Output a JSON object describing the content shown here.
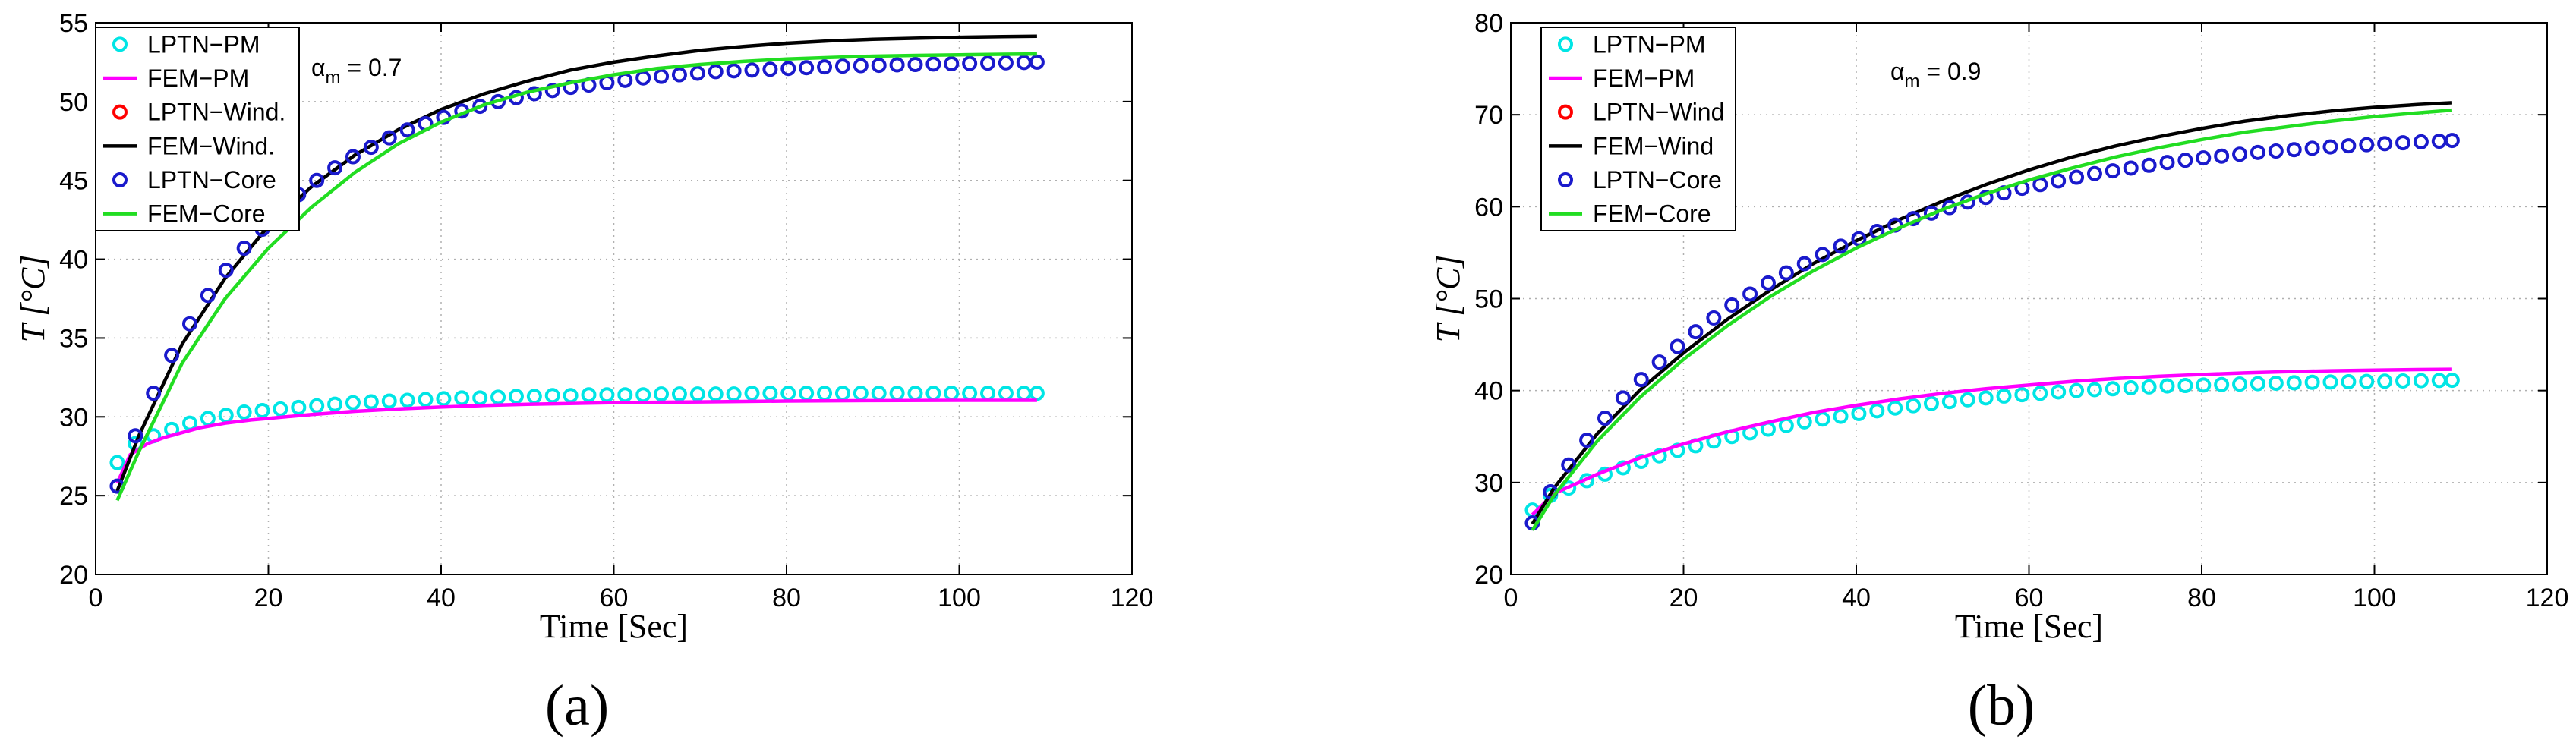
{
  "chart_data": [
    {
      "type": "line",
      "panel_label": "(a)",
      "annotation": {
        "main": "α",
        "sub": "m",
        "value": " = 0.7"
      },
      "xlabel": "Time [Sec]",
      "ylabel": "T [°C]",
      "xlim": [
        0,
        120
      ],
      "ylim": [
        20,
        55
      ],
      "xticks": [
        0,
        20,
        40,
        60,
        80,
        100,
        120
      ],
      "yticks": [
        20,
        25,
        30,
        35,
        40,
        45,
        50,
        55
      ],
      "grid": true,
      "legend_position": "top-left",
      "series": [
        {
          "name": "LPTN−PM",
          "style": "markers",
          "color": "#00e5e5",
          "x": [
            2.5,
            4.6,
            6.7,
            8.8,
            10.9,
            13,
            15.1,
            17.2,
            19.3,
            21.4,
            23.5,
            25.6,
            27.7,
            29.8,
            31.9,
            34,
            36.1,
            38.2,
            40.3,
            42.4,
            44.5,
            46.6,
            48.7,
            50.8,
            52.9,
            55,
            57.1,
            59.2,
            61.3,
            63.4,
            65.5,
            67.6,
            69.7,
            71.8,
            73.9,
            76,
            78.1,
            80.2,
            82.3,
            84.4,
            86.5,
            88.6,
            90.7,
            92.8,
            94.9,
            97,
            99.1,
            101.2,
            103.3,
            105.4,
            107.5,
            109
          ],
          "y": [
            27.1,
            28.3,
            28.8,
            29.2,
            29.6,
            29.9,
            30.1,
            30.3,
            30.4,
            30.5,
            30.6,
            30.7,
            30.8,
            30.9,
            30.95,
            31,
            31.05,
            31.1,
            31.15,
            31.2,
            31.2,
            31.25,
            31.3,
            31.3,
            31.35,
            31.35,
            31.4,
            31.4,
            31.4,
            31.4,
            31.45,
            31.45,
            31.45,
            31.45,
            31.45,
            31.5,
            31.5,
            31.5,
            31.5,
            31.5,
            31.5,
            31.5,
            31.5,
            31.5,
            31.5,
            31.5,
            31.5,
            31.5,
            31.5,
            31.5,
            31.5,
            31.5
          ]
        },
        {
          "name": "FEM−PM",
          "style": "line",
          "color": "#ff00ff",
          "x": [
            2.5,
            4,
            6,
            8,
            10,
            12,
            15,
            18,
            20,
            25,
            30,
            35,
            40,
            45,
            50,
            60,
            70,
            80,
            90,
            100,
            109
          ],
          "y": [
            25.8,
            27.6,
            28.3,
            28.7,
            29.0,
            29.3,
            29.6,
            29.8,
            29.9,
            30.15,
            30.35,
            30.5,
            30.62,
            30.72,
            30.8,
            30.9,
            30.95,
            31.0,
            31.03,
            31.05,
            31.05
          ]
        },
        {
          "name": "LPTN−Wind.",
          "style": "markers",
          "color": "#ff0000",
          "x": [],
          "y": []
        },
        {
          "name": "FEM−Wind.",
          "style": "line",
          "color": "#000000",
          "x": [
            2.5,
            5,
            10,
            15,
            20,
            25,
            30,
            35,
            40,
            45,
            50,
            55,
            60,
            65,
            70,
            75,
            80,
            85,
            90,
            95,
            100,
            105,
            109
          ],
          "y": [
            25.3,
            28.8,
            34.6,
            38.8,
            42.1,
            44.6,
            46.6,
            48.2,
            49.5,
            50.5,
            51.3,
            52.0,
            52.5,
            52.9,
            53.25,
            53.5,
            53.7,
            53.85,
            53.95,
            54.02,
            54.08,
            54.12,
            54.15
          ]
        },
        {
          "name": "LPTN−Core",
          "style": "markers",
          "color": "#1a1acc",
          "x": [
            2.5,
            4.6,
            6.7,
            8.8,
            10.9,
            13,
            15.1,
            17.2,
            19.3,
            21.4,
            23.5,
            25.6,
            27.7,
            29.8,
            31.9,
            34,
            36.1,
            38.2,
            40.3,
            42.4,
            44.5,
            46.6,
            48.7,
            50.8,
            52.9,
            55,
            57.1,
            59.2,
            61.3,
            63.4,
            65.5,
            67.6,
            69.7,
            71.8,
            73.9,
            76,
            78.1,
            80.2,
            82.3,
            84.4,
            86.5,
            88.6,
            90.7,
            92.8,
            94.9,
            97,
            99.1,
            101.2,
            103.3,
            105.4,
            107.5,
            109
          ],
          "y": [
            25.6,
            28.8,
            31.5,
            33.9,
            35.9,
            37.7,
            39.3,
            40.7,
            41.9,
            43.1,
            44.1,
            45.0,
            45.8,
            46.5,
            47.1,
            47.7,
            48.2,
            48.6,
            49.0,
            49.4,
            49.7,
            50.0,
            50.25,
            50.5,
            50.7,
            50.9,
            51.05,
            51.2,
            51.35,
            51.5,
            51.6,
            51.7,
            51.8,
            51.9,
            51.95,
            52.0,
            52.05,
            52.1,
            52.15,
            52.2,
            52.25,
            52.28,
            52.3,
            52.33,
            52.35,
            52.38,
            52.4,
            52.42,
            52.44,
            52.46,
            52.48,
            52.5
          ]
        },
        {
          "name": "FEM−Core",
          "style": "line",
          "color": "#22dd22",
          "x": [
            2.5,
            5,
            10,
            15,
            20,
            25,
            30,
            35,
            40,
            45,
            50,
            55,
            60,
            65,
            70,
            75,
            80,
            85,
            90,
            95,
            100,
            105,
            109
          ],
          "y": [
            24.7,
            27.8,
            33.4,
            37.5,
            40.7,
            43.3,
            45.5,
            47.3,
            48.7,
            49.8,
            50.6,
            51.2,
            51.7,
            52.1,
            52.35,
            52.55,
            52.7,
            52.8,
            52.88,
            52.93,
            52.97,
            53.0,
            53.02
          ]
        }
      ]
    },
    {
      "type": "line",
      "panel_label": "(b)",
      "annotation": {
        "main": "α",
        "sub": "m",
        "value": " = 0.9"
      },
      "xlabel": "Time [Sec]",
      "ylabel": "T [°C]",
      "xlim": [
        0,
        120
      ],
      "ylim": [
        20,
        80
      ],
      "xticks": [
        0,
        20,
        40,
        60,
        80,
        100,
        120
      ],
      "yticks": [
        20,
        30,
        40,
        50,
        60,
        70,
        80
      ],
      "grid": true,
      "legend_position": "top-left",
      "series": [
        {
          "name": "LPTN−PM",
          "style": "markers",
          "color": "#00e5e5",
          "x": [
            2.5,
            4.6,
            6.7,
            8.8,
            10.9,
            13,
            15.1,
            17.2,
            19.3,
            21.4,
            23.5,
            25.6,
            27.7,
            29.8,
            31.9,
            34,
            36.1,
            38.2,
            40.3,
            42.4,
            44.5,
            46.6,
            48.7,
            50.8,
            52.9,
            55,
            57.1,
            59.2,
            61.3,
            63.4,
            65.5,
            67.6,
            69.7,
            71.8,
            73.9,
            76,
            78.1,
            80.2,
            82.3,
            84.4,
            86.5,
            88.6,
            90.7,
            92.8,
            94.9,
            97,
            99.1,
            101.2,
            103.3,
            105.4,
            107.5,
            109
          ],
          "y": [
            27.0,
            28.6,
            29.4,
            30.2,
            30.9,
            31.6,
            32.3,
            32.9,
            33.5,
            34.0,
            34.5,
            35.0,
            35.4,
            35.8,
            36.2,
            36.6,
            36.9,
            37.2,
            37.5,
            37.8,
            38.1,
            38.35,
            38.6,
            38.8,
            39.0,
            39.2,
            39.4,
            39.55,
            39.7,
            39.85,
            40.0,
            40.1,
            40.2,
            40.3,
            40.4,
            40.5,
            40.55,
            40.6,
            40.65,
            40.7,
            40.75,
            40.8,
            40.85,
            40.9,
            40.93,
            40.96,
            40.99,
            41.02,
            41.05,
            41.08,
            41.1,
            41.12
          ]
        },
        {
          "name": "FEM−PM",
          "style": "line",
          "color": "#ff00ff",
          "x": [
            2.5,
            5,
            10,
            15,
            20,
            25,
            30,
            35,
            40,
            45,
            50,
            55,
            60,
            65,
            70,
            75,
            80,
            85,
            90,
            95,
            100,
            105,
            109
          ],
          "y": [
            26.5,
            28.8,
            30.9,
            32.7,
            34.2,
            35.5,
            36.6,
            37.6,
            38.4,
            39.1,
            39.7,
            40.2,
            40.6,
            41.0,
            41.3,
            41.55,
            41.75,
            41.92,
            42.05,
            42.15,
            42.22,
            42.28,
            42.32
          ]
        },
        {
          "name": "LPTN−Wind",
          "style": "markers",
          "color": "#ff0000",
          "x": [],
          "y": []
        },
        {
          "name": "FEM−Wind",
          "style": "line",
          "color": "#000000",
          "x": [
            2.5,
            5,
            10,
            15,
            20,
            25,
            30,
            35,
            40,
            45,
            50,
            55,
            60,
            65,
            70,
            75,
            80,
            85,
            90,
            95,
            100,
            105,
            109
          ],
          "y": [
            25.5,
            29.4,
            35.3,
            40.1,
            44.1,
            47.7,
            50.9,
            53.8,
            56.3,
            58.6,
            60.6,
            62.4,
            64.0,
            65.4,
            66.6,
            67.6,
            68.5,
            69.3,
            69.9,
            70.4,
            70.8,
            71.1,
            71.3
          ]
        },
        {
          "name": "LPTN−Core",
          "style": "markers",
          "color": "#1a1acc",
          "x": [
            2.5,
            4.6,
            6.7,
            8.8,
            10.9,
            13,
            15.1,
            17.2,
            19.3,
            21.4,
            23.5,
            25.6,
            27.7,
            29.8,
            31.9,
            34,
            36.1,
            38.2,
            40.3,
            42.4,
            44.5,
            46.6,
            48.7,
            50.8,
            52.9,
            55,
            57.1,
            59.2,
            61.3,
            63.4,
            65.5,
            67.6,
            69.7,
            71.8,
            73.9,
            76,
            78.1,
            80.2,
            82.3,
            84.4,
            86.5,
            88.6,
            90.7,
            92.8,
            94.9,
            97,
            99.1,
            101.2,
            103.3,
            105.4,
            107.5,
            109
          ],
          "y": [
            25.6,
            29.0,
            31.9,
            34.6,
            37.0,
            39.2,
            41.2,
            43.1,
            44.8,
            46.4,
            47.9,
            49.3,
            50.5,
            51.7,
            52.8,
            53.8,
            54.8,
            55.7,
            56.5,
            57.3,
            58.0,
            58.7,
            59.3,
            59.9,
            60.5,
            61.0,
            61.5,
            62.0,
            62.4,
            62.8,
            63.2,
            63.6,
            63.9,
            64.2,
            64.5,
            64.8,
            65.05,
            65.3,
            65.5,
            65.7,
            65.9,
            66.05,
            66.2,
            66.35,
            66.5,
            66.62,
            66.74,
            66.85,
            66.95,
            67.05,
            67.12,
            67.2
          ]
        },
        {
          "name": "FEM−Core",
          "style": "line",
          "color": "#22dd22",
          "x": [
            2.5,
            5,
            10,
            15,
            20,
            25,
            30,
            35,
            40,
            45,
            50,
            55,
            60,
            65,
            70,
            75,
            80,
            85,
            90,
            95,
            100,
            105,
            109
          ],
          "y": [
            24.8,
            28.6,
            34.5,
            39.3,
            43.4,
            47.0,
            50.2,
            53.0,
            55.5,
            57.7,
            59.7,
            61.4,
            62.9,
            64.2,
            65.4,
            66.4,
            67.3,
            68.1,
            68.7,
            69.3,
            69.8,
            70.2,
            70.5
          ]
        }
      ]
    }
  ]
}
